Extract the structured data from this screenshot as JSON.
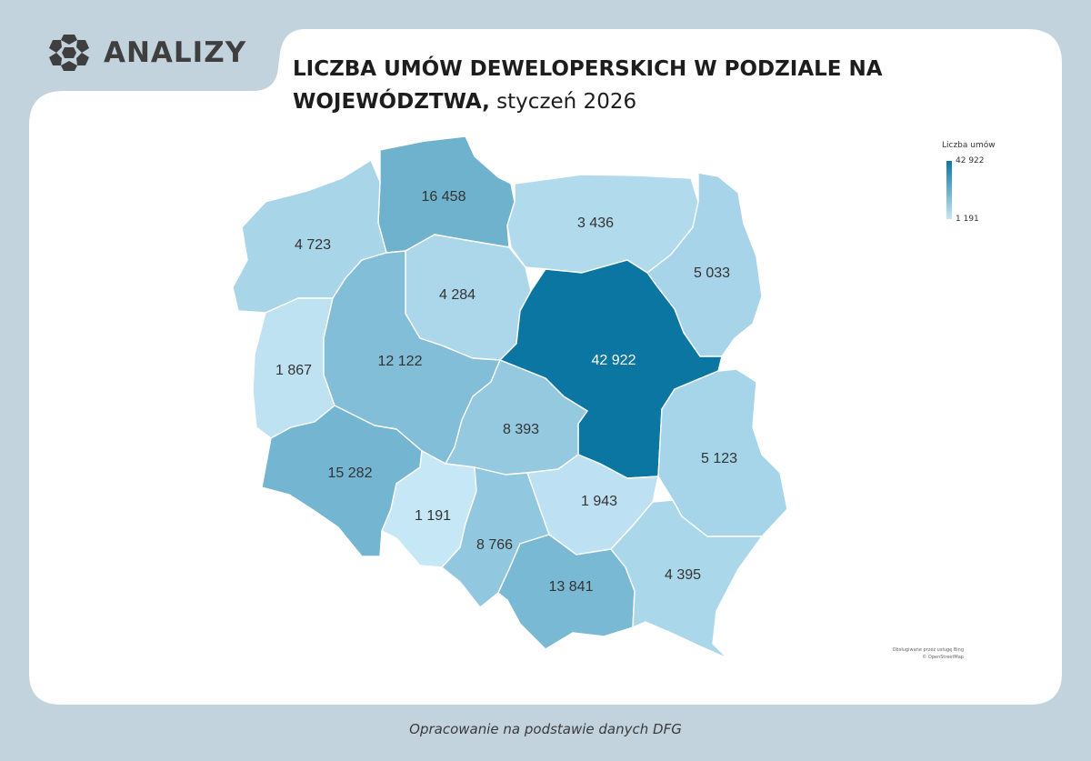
{
  "logo": {
    "text": "ANALIZY",
    "icon": "hexagon-flower-icon"
  },
  "title": {
    "bold_line1": "LICZBA UMÓW DEWELOPERSKICH W PODZIALE NA",
    "bold_line2": "WOJEWÓDZTWA,",
    "normal_suffix": " styczeń 2026"
  },
  "legend": {
    "title": "Liczba umów",
    "max_label": "42 922",
    "min_label": "1 191"
  },
  "attribution": {
    "line1": "Obsługiwane przez usługę Bing",
    "line2": "© OpenStreetMap"
  },
  "footer": "Opracowanie na podstawie danych DFG",
  "colors": {
    "background": "#c3d3dd",
    "panel": "#ffffff",
    "scale_min": "#c6e7f6",
    "scale_max": "#0c76a2",
    "logo": "#3f3f3f"
  },
  "chart_data": {
    "type": "choropleth",
    "region_values": [
      {
        "label": "16 458",
        "value": 16458
      },
      {
        "label": "4 723",
        "value": 4723
      },
      {
        "label": "3 436",
        "value": 3436
      },
      {
        "label": "5 033",
        "value": 5033
      },
      {
        "label": "4 284",
        "value": 4284
      },
      {
        "label": "42 922",
        "value": 42922
      },
      {
        "label": "1 867",
        "value": 1867
      },
      {
        "label": "12 122",
        "value": 12122
      },
      {
        "label": "8 393",
        "value": 8393
      },
      {
        "label": "5 123",
        "value": 5123
      },
      {
        "label": "15 282",
        "value": 15282
      },
      {
        "label": "1 191",
        "value": 1191
      },
      {
        "label": "1 943",
        "value": 1943
      },
      {
        "label": "8 766",
        "value": 8766
      },
      {
        "label": "13 841",
        "value": 13841
      },
      {
        "label": "4 395",
        "value": 4395
      }
    ],
    "scale": {
      "min": 1191,
      "max": 42922
    }
  }
}
